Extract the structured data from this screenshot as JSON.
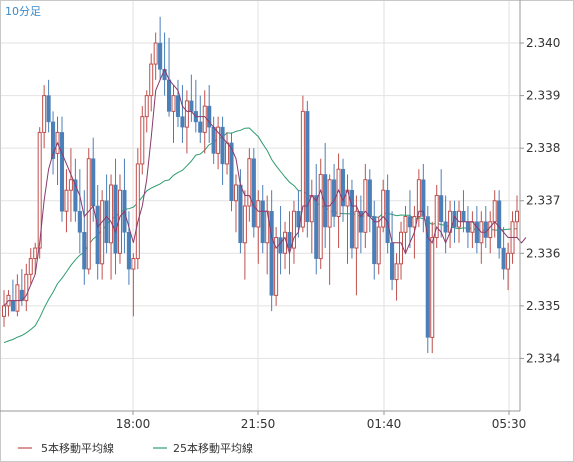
{
  "chart_data": {
    "type": "candlestick",
    "title": "10分足",
    "x_tick_labels": [
      "18:00",
      "21:50",
      "01:40",
      "05:30"
    ],
    "y_tick_labels": [
      "2.340",
      "2.339",
      "2.338",
      "2.337",
      "2.336",
      "2.335",
      "2.334"
    ],
    "ylim": [
      2.333,
      2.3408
    ],
    "grid": true,
    "legend_position": "bottom-left",
    "series": [
      {
        "name": "5本移動平均線",
        "color": "#c0504d"
      },
      {
        "name": "25本移動平均線",
        "color": "#2e9c6e"
      }
    ],
    "candles": [
      [
        2.3348,
        2.3353,
        2.3346,
        2.335
      ],
      [
        2.335,
        2.3353,
        2.3348,
        2.3352
      ],
      [
        2.3351,
        2.3355,
        2.3349,
        2.3349
      ],
      [
        2.3349,
        2.3356,
        2.3348,
        2.3354
      ],
      [
        2.3353,
        2.3357,
        2.335,
        2.3351
      ],
      [
        2.3351,
        2.3358,
        2.3349,
        2.3356
      ],
      [
        2.3356,
        2.3361,
        2.3354,
        2.3359
      ],
      [
        2.3359,
        2.3362,
        2.3356,
        2.3361
      ],
      [
        2.3361,
        2.3384,
        2.3359,
        2.3383
      ],
      [
        2.3383,
        2.3392,
        2.338,
        2.339
      ],
      [
        2.339,
        2.3393,
        2.3383,
        2.3385
      ],
      [
        2.3385,
        2.3387,
        2.3375,
        2.3378
      ],
      [
        2.3379,
        2.3386,
        2.3373,
        2.3383
      ],
      [
        2.3383,
        2.3386,
        2.3366,
        2.3368
      ],
      [
        2.3368,
        2.3376,
        2.3364,
        2.3372
      ],
      [
        2.3372,
        2.338,
        2.3366,
        2.3374
      ],
      [
        2.3374,
        2.3378,
        2.3366,
        2.3368
      ],
      [
        2.3368,
        2.3376,
        2.336,
        2.3364
      ],
      [
        2.3364,
        2.3372,
        2.3354,
        2.3357
      ],
      [
        2.3357,
        2.338,
        2.3356,
        2.3378
      ],
      [
        2.3378,
        2.3382,
        2.3366,
        2.3369
      ],
      [
        2.3369,
        2.3373,
        2.3355,
        2.3358
      ],
      [
        2.3358,
        2.3372,
        2.3355,
        2.337
      ],
      [
        2.337,
        2.3375,
        2.336,
        2.3362
      ],
      [
        2.3362,
        2.3375,
        2.3355,
        2.3373
      ],
      [
        2.3373,
        2.3378,
        2.3356,
        2.336
      ],
      [
        2.336,
        2.3375,
        2.3358,
        2.3372
      ],
      [
        2.3372,
        2.3378,
        2.336,
        2.3364
      ],
      [
        2.3364,
        2.3368,
        2.3354,
        2.3357
      ],
      [
        2.3357,
        2.336,
        2.3348,
        2.3359
      ],
      [
        2.3359,
        2.338,
        2.3357,
        2.3377
      ],
      [
        2.3377,
        2.3388,
        2.3375,
        2.3386
      ],
      [
        2.3386,
        2.3391,
        2.3383,
        2.339
      ],
      [
        2.339,
        2.3398,
        2.3387,
        2.3396
      ],
      [
        2.3396,
        2.3402,
        2.3393,
        2.34
      ],
      [
        2.34,
        2.3405,
        2.3393,
        2.3395
      ],
      [
        2.3395,
        2.3402,
        2.339,
        2.3393
      ],
      [
        2.3393,
        2.3401,
        2.3386,
        2.3387
      ],
      [
        2.3387,
        2.3392,
        2.3381,
        2.339
      ],
      [
        2.339,
        2.3393,
        2.3384,
        2.3386
      ],
      [
        2.3386,
        2.3392,
        2.3381,
        2.3384
      ],
      [
        2.3384,
        2.3391,
        2.3379,
        2.3389
      ],
      [
        2.3389,
        2.3394,
        2.3385,
        2.3387
      ],
      [
        2.3387,
        2.3393,
        2.3383,
        2.3385
      ],
      [
        2.3385,
        2.339,
        2.3381,
        2.3383
      ],
      [
        2.3383,
        2.3391,
        2.3379,
        2.3388
      ],
      [
        2.3388,
        2.3392,
        2.3381,
        2.3384
      ],
      [
        2.3384,
        2.3386,
        2.3377,
        2.3379
      ],
      [
        2.3379,
        2.3386,
        2.3376,
        2.3384
      ],
      [
        2.3384,
        2.3386,
        2.3373,
        2.3377
      ],
      [
        2.3377,
        2.3383,
        2.3375,
        2.3381
      ],
      [
        2.3381,
        2.3383,
        2.3368,
        2.337
      ],
      [
        2.337,
        2.3375,
        2.3364,
        2.3373
      ],
      [
        2.3373,
        2.3376,
        2.336,
        2.3362
      ],
      [
        2.3362,
        2.3372,
        2.3355,
        2.3369
      ],
      [
        2.3369,
        2.338,
        2.3366,
        2.3378
      ],
      [
        2.3378,
        2.338,
        2.3363,
        2.3365
      ],
      [
        2.3365,
        2.3372,
        2.3358,
        2.337
      ],
      [
        2.337,
        2.3373,
        2.336,
        2.3362
      ],
      [
        2.3362,
        2.3371,
        2.3356,
        2.3368
      ],
      [
        2.3368,
        2.3372,
        2.3349,
        2.3352
      ],
      [
        2.3352,
        2.3365,
        2.335,
        2.3363
      ],
      [
        2.3363,
        2.3369,
        2.3356,
        2.336
      ],
      [
        2.336,
        2.3366,
        2.3357,
        2.3364
      ],
      [
        2.3364,
        2.3368,
        2.3356,
        2.3361
      ],
      [
        2.3361,
        2.337,
        2.3358,
        2.3368
      ],
      [
        2.3368,
        2.3372,
        2.3363,
        2.3365
      ],
      [
        2.3365,
        2.339,
        2.3364,
        2.3387
      ],
      [
        2.3387,
        2.3389,
        2.3363,
        2.3366
      ],
      [
        2.3366,
        2.3374,
        2.336,
        2.3371
      ],
      [
        2.3371,
        2.3377,
        2.3356,
        2.3359
      ],
      [
        2.3359,
        2.3378,
        2.3357,
        2.3375
      ],
      [
        2.3375,
        2.3381,
        2.3361,
        2.3365
      ],
      [
        2.3365,
        2.3375,
        2.3354,
        2.3374
      ],
      [
        2.3374,
        2.3377,
        2.3365,
        2.3367
      ],
      [
        2.3367,
        2.3379,
        2.3361,
        2.3376
      ],
      [
        2.3376,
        2.3378,
        2.3366,
        2.3369
      ],
      [
        2.3369,
        2.3375,
        2.3358,
        2.3372
      ],
      [
        2.3372,
        2.3374,
        2.3359,
        2.3361
      ],
      [
        2.3361,
        2.3371,
        2.3352,
        2.3368
      ],
      [
        2.3368,
        2.3371,
        2.336,
        2.3364
      ],
      [
        2.3364,
        2.3377,
        2.3361,
        2.3374
      ],
      [
        2.3374,
        2.3376,
        2.3364,
        2.3367
      ],
      [
        2.3367,
        2.337,
        2.3355,
        2.3358
      ],
      [
        2.3358,
        2.3367,
        2.3356,
        2.3365
      ],
      [
        2.3365,
        2.3374,
        2.3364,
        2.3372
      ],
      [
        2.3372,
        2.3375,
        2.336,
        2.3362
      ],
      [
        2.3362,
        2.3368,
        2.3353,
        2.3355
      ],
      [
        2.3355,
        2.336,
        2.3351,
        2.3358
      ],
      [
        2.3358,
        2.3366,
        2.3355,
        2.3364
      ],
      [
        2.3364,
        2.3369,
        2.336,
        2.3367
      ],
      [
        2.3367,
        2.3372,
        2.3361,
        2.3365
      ],
      [
        2.3365,
        2.3369,
        2.3359,
        2.3367
      ],
      [
        2.3367,
        2.3376,
        2.3365,
        2.3374
      ],
      [
        2.3374,
        2.3377,
        2.3364,
        2.3367
      ],
      [
        2.3367,
        2.3369,
        2.3341,
        2.3344
      ],
      [
        2.3344,
        2.3366,
        2.3341,
        2.3363
      ],
      [
        2.3363,
        2.3373,
        2.3361,
        2.3371
      ],
      [
        2.3371,
        2.3376,
        2.3363,
        2.3366
      ],
      [
        2.3366,
        2.3371,
        2.336,
        2.3364
      ],
      [
        2.3364,
        2.337,
        2.3361,
        2.3368
      ],
      [
        2.3368,
        2.337,
        2.3362,
        2.3365
      ],
      [
        2.3365,
        2.337,
        2.3362,
        2.3368
      ],
      [
        2.3368,
        2.3372,
        2.3364,
        2.3366
      ],
      [
        2.3366,
        2.3369,
        2.3361,
        2.3364
      ],
      [
        2.3364,
        2.3368,
        2.3361,
        2.3366
      ],
      [
        2.3366,
        2.3369,
        2.336,
        2.3362
      ],
      [
        2.3362,
        2.3368,
        2.3358,
        2.3366
      ],
      [
        2.3366,
        2.3369,
        2.3361,
        2.3363
      ],
      [
        2.3363,
        2.3368,
        2.336,
        2.3366
      ],
      [
        2.3366,
        2.3372,
        2.3363,
        2.337
      ],
      [
        2.337,
        2.3372,
        2.3359,
        2.3361
      ],
      [
        2.3361,
        2.3365,
        2.3355,
        2.3357
      ],
      [
        2.3357,
        2.3362,
        2.3353,
        2.336
      ],
      [
        2.336,
        2.3368,
        2.3358,
        2.3366
      ],
      [
        2.3366,
        2.3371,
        2.3363,
        2.3368
      ]
    ],
    "ma5": [
      2.335,
      2.3351,
      2.3351,
      2.3351,
      2.3351,
      2.3352,
      2.3354,
      2.3356,
      2.3362,
      2.337,
      2.3376,
      2.3379,
      2.3381,
      2.3379,
      2.3377,
      2.3375,
      2.3373,
      2.3371,
      2.3367,
      2.3368,
      2.3369,
      2.3365,
      2.3366,
      2.3367,
      2.3366,
      2.3364,
      2.3367,
      2.3368,
      2.3365,
      2.3362,
      2.3366,
      2.3369,
      2.3374,
      2.3382,
      2.3391,
      2.3393,
      2.3395,
      2.3393,
      2.3392,
      2.3391,
      2.3388,
      2.3387,
      2.3387,
      2.3386,
      2.3386,
      2.3386,
      2.3385,
      2.3384,
      2.3383,
      2.3382,
      2.3381,
      2.338,
      2.3378,
      2.3373,
      2.3371,
      2.3371,
      2.3369,
      2.3368,
      2.3368,
      2.3368,
      2.3363,
      2.3361,
      2.3362,
      2.3363,
      2.336,
      2.3363,
      2.3364,
      2.3369,
      2.3369,
      2.3371,
      2.337,
      2.3372,
      2.3369,
      2.3369,
      2.337,
      2.3372,
      2.337,
      2.3372,
      2.3369,
      2.3369,
      2.3367,
      2.3368,
      2.3367,
      2.3366,
      2.3366,
      2.3367,
      2.3366,
      2.3362,
      2.3362,
      2.3362,
      2.336,
      2.3362,
      2.3364,
      2.3368,
      2.3368,
      2.3363,
      2.3362,
      2.3365,
      2.3364,
      2.3362,
      2.3364,
      2.3367,
      2.3366,
      2.3366,
      2.3366,
      2.3366,
      2.3365,
      2.3364,
      2.3364,
      2.3365,
      2.3366,
      2.3365,
      2.3364,
      2.3363,
      2.3363,
      2.3363,
      2.3362,
      2.3363
    ]
  },
  "legend": {
    "item1": "5本移動平均線",
    "item2": "25本移動平均線"
  }
}
